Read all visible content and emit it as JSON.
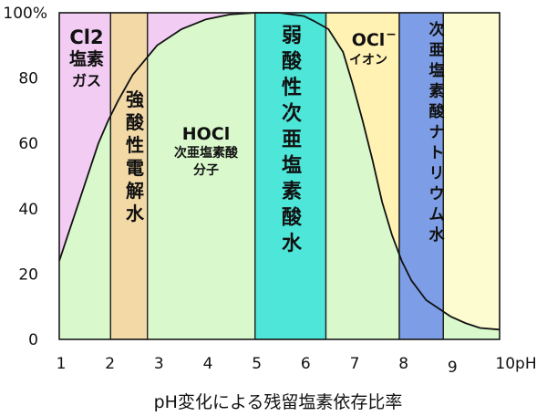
{
  "chart_data": {
    "type": "area",
    "xlabel": "pH変化による残留塩素依存比率",
    "xlim": [
      1,
      10
    ],
    "ylim": [
      0,
      100
    ],
    "x_ticks": [
      {
        "value": 1,
        "label": "1"
      },
      {
        "value": 2,
        "label": "2"
      },
      {
        "value": 3,
        "label": "3"
      },
      {
        "value": 4,
        "label": "4"
      },
      {
        "value": 5,
        "label": "5"
      },
      {
        "value": 6,
        "label": "6"
      },
      {
        "value": 7,
        "label": "7"
      },
      {
        "value": 8,
        "label": "8"
      },
      {
        "value": 9,
        "label": "9"
      },
      {
        "value": 10,
        "label": "10pH"
      }
    ],
    "y_ticks": [
      {
        "value": 0,
        "label": "0"
      },
      {
        "value": 20,
        "label": "20"
      },
      {
        "value": 40,
        "label": "40"
      },
      {
        "value": 60,
        "label": "60"
      },
      {
        "value": 80,
        "label": "80"
      },
      {
        "value": 100,
        "label": "100%"
      }
    ],
    "regions": [
      {
        "id": "cl2",
        "from": 1.0,
        "to": 2.05,
        "color": "#f2ccf2",
        "label_lines": [
          "Cl2",
          "塩素",
          "ガス"
        ]
      },
      {
        "id": "strong-acid",
        "from": 2.05,
        "to": 2.8,
        "color": "#f2d9a6",
        "label_lines": [
          "強",
          "酸",
          "性",
          "電",
          "解",
          "水"
        ]
      },
      {
        "id": "hocl",
        "from": 2.8,
        "to": 5.0,
        "color": "#f2ccf2",
        "label_lines": [
          "HOCl",
          "次亜塩素酸",
          "分子"
        ]
      },
      {
        "id": "weak-acid",
        "from": 5.0,
        "to": 6.45,
        "color": "#4de6d9",
        "label_lines": [
          "弱",
          "酸",
          "性",
          "次",
          "亜",
          "塩",
          "素",
          "酸",
          "水"
        ]
      },
      {
        "id": "ocl",
        "from": 6.45,
        "to": 7.95,
        "color": "#fff2b3",
        "label_lines": [
          "OCl",
          "イオン"
        ],
        "superscript": "−"
      },
      {
        "id": "hypochlorite",
        "from": 7.95,
        "to": 8.85,
        "color": "#7d9ee6",
        "label_lines": [
          "次",
          "亜",
          "塩",
          "素",
          "酸",
          "ナ",
          "ト",
          "リ",
          "ウ",
          "ム",
          "水"
        ]
      },
      {
        "id": "alkaline-tail",
        "from": 8.85,
        "to": 10.0,
        "color": "#fdfbd0",
        "label_lines": []
      }
    ],
    "hocl_curve": {
      "color": "#111111",
      "fill": "#d9f8cc",
      "points": [
        [
          1.0,
          24
        ],
        [
          1.2,
          33
        ],
        [
          1.4,
          42
        ],
        [
          1.6,
          51
        ],
        [
          1.8,
          60
        ],
        [
          2.0,
          67
        ],
        [
          2.2,
          73
        ],
        [
          2.5,
          81
        ],
        [
          3.0,
          90
        ],
        [
          3.5,
          95
        ],
        [
          4.0,
          98
        ],
        [
          4.5,
          99.5
        ],
        [
          5.0,
          100
        ],
        [
          5.5,
          100
        ],
        [
          6.0,
          99
        ],
        [
          6.2,
          97.5
        ],
        [
          6.5,
          95
        ],
        [
          6.8,
          88
        ],
        [
          7.0,
          78
        ],
        [
          7.2,
          67
        ],
        [
          7.4,
          55
        ],
        [
          7.6,
          42
        ],
        [
          7.8,
          32
        ],
        [
          8.0,
          24
        ],
        [
          8.2,
          18
        ],
        [
          8.5,
          12
        ],
        [
          8.8,
          9
        ],
        [
          9.0,
          7
        ],
        [
          9.3,
          5
        ],
        [
          9.6,
          3.5
        ],
        [
          10.0,
          3
        ]
      ]
    }
  }
}
